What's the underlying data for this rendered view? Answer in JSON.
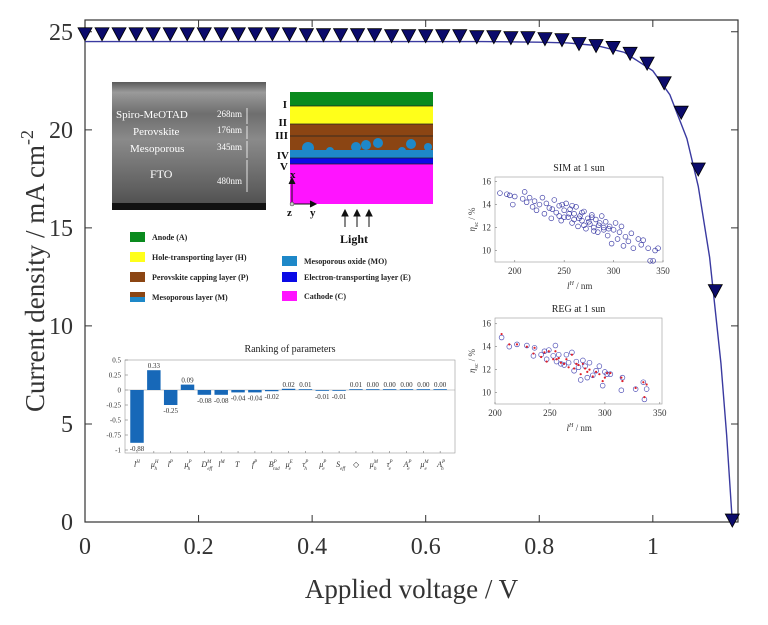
{
  "chart_data": [
    {
      "type": "line",
      "xlabel": "Applied voltage / V",
      "ylabel": "Current density / mA cm",
      "ylabel_sup": "-2",
      "xlim": [
        0,
        1.15
      ],
      "ylim": [
        0,
        25.6
      ],
      "xticks": [
        0,
        0.2,
        0.4,
        0.6,
        0.8,
        1
      ],
      "xtick_labels": [
        "0",
        "0.2",
        "0.4",
        "0.6",
        "0.8",
        "1"
      ],
      "yticks": [
        0,
        5,
        10,
        15,
        20,
        25
      ],
      "ytick_labels": [
        "0",
        "5",
        "10",
        "15",
        "20",
        "25"
      ],
      "grid": false,
      "series": [
        {
          "style": "solid line",
          "color": "#3a3aa0",
          "x": [
            0,
            0.5,
            0.7,
            0.8,
            0.85,
            0.9,
            0.95,
            1.0,
            1.03,
            1.06,
            1.08,
            1.1,
            1.12,
            1.13,
            1.14
          ],
          "y": [
            24.5,
            24.5,
            24.5,
            24.47,
            24.43,
            24.3,
            23.95,
            23.01,
            21.79,
            19.55,
            17.12,
            13.5,
            8.08,
            4.43,
            0
          ]
        },
        {
          "style": "downward triangle markers",
          "color": "#0b0b6b",
          "x": [
            0,
            0.03,
            0.06,
            0.09,
            0.12,
            0.15,
            0.18,
            0.21,
            0.24,
            0.27,
            0.3,
            0.33,
            0.36,
            0.39,
            0.42,
            0.45,
            0.48,
            0.51,
            0.54,
            0.57,
            0.6,
            0.63,
            0.66,
            0.69,
            0.72,
            0.75,
            0.78,
            0.81,
            0.84,
            0.87,
            0.9,
            0.93,
            0.96,
            0.99,
            1.02,
            1.05,
            1.08,
            1.11,
            1.14
          ],
          "y": [
            24.9,
            24.9,
            24.9,
            24.9,
            24.9,
            24.9,
            24.9,
            24.9,
            24.9,
            24.9,
            24.9,
            24.9,
            24.9,
            24.85,
            24.85,
            24.85,
            24.85,
            24.85,
            24.8,
            24.8,
            24.8,
            24.8,
            24.8,
            24.75,
            24.75,
            24.7,
            24.7,
            24.65,
            24.6,
            24.4,
            24.3,
            24.2,
            23.9,
            23.4,
            22.4,
            20.9,
            18.0,
            11.8,
            0.1
          ]
        }
      ]
    },
    {
      "type": "bar",
      "title": "Ranking of parameters",
      "ylim": [
        -1.05,
        0.5
      ],
      "yticks": [
        0.5,
        0.25,
        0,
        -0.25,
        -0.5,
        -0.75,
        -1
      ],
      "ytick_labels": [
        "0.5",
        "0.25",
        "0",
        "-0.25",
        "-0.5",
        "-0.75",
        "-1"
      ],
      "color": "#1768b8",
      "categories": [
        {
          "base": "l",
          "sup": "H",
          "sub": ""
        },
        {
          "base": "μ",
          "sup": "H",
          "sub": "h"
        },
        {
          "base": "l",
          "sup": "P",
          "sub": ""
        },
        {
          "base": "μ",
          "sup": "P",
          "sub": "h"
        },
        {
          "base": "D",
          "sup": "M",
          "sub": "eff"
        },
        {
          "base": "l",
          "sup": "M",
          "sub": ""
        },
        {
          "base": "T",
          "sup": "",
          "sub": ""
        },
        {
          "base": "f",
          "sup": "P",
          "sub": ""
        },
        {
          "base": "B",
          "sup": "P",
          "sub": "rad"
        },
        {
          "base": "μ",
          "sup": "E",
          "sub": "e"
        },
        {
          "base": "τ",
          "sup": "P",
          "sub": "h"
        },
        {
          "base": "μ",
          "sup": "P",
          "sub": "e"
        },
        {
          "base": "S",
          "sup": "",
          "sub": "eff"
        },
        {
          "base": "◇",
          "sup": "",
          "sub": ""
        },
        {
          "base": "μ",
          "sup": "M",
          "sub": "h"
        },
        {
          "base": "τ",
          "sup": "P",
          "sub": "e"
        },
        {
          "base": "A",
          "sup": "P",
          "sub": "e"
        },
        {
          "base": "μ",
          "sup": "M",
          "sub": "e"
        },
        {
          "base": "A",
          "sup": "P",
          "sub": "h"
        }
      ],
      "values": [
        -0.88,
        0.33,
        -0.25,
        0.09,
        -0.08,
        -0.08,
        -0.04,
        -0.04,
        -0.02,
        0.02,
        0.01,
        -0.01,
        -0.01,
        0.01,
        0.0,
        0.0,
        0.0,
        0.0,
        0.0
      ],
      "value_labels": [
        "-0.88",
        "0.33",
        "-0.25",
        "0.09",
        "-0.08",
        "-0.08",
        "-0.04",
        "-0.04",
        "-0.02",
        "0.02",
        "0.01",
        "-0.01",
        "-0.01",
        "0.01",
        "0.00",
        "0.00",
        "0.00",
        "0.00",
        "0.00"
      ]
    },
    {
      "type": "scatter",
      "title": "SIM at 1 sun",
      "xlabel": "l",
      "xlabel_sup": "H",
      "xlabel_unit": " / nm",
      "ylabel": "η",
      "ylabel_sub": "sc",
      "ylabel_unit": " / %",
      "xlim": [
        180,
        350
      ],
      "ylim": [
        9.0,
        16.4
      ],
      "xticks": [
        200,
        250,
        300,
        350
      ],
      "xtick_labels": [
        "200",
        "250",
        "300",
        "350"
      ],
      "yticks": [
        10,
        12,
        14,
        16
      ],
      "ytick_labels": [
        "10",
        "12",
        "14",
        "16"
      ],
      "color": "#22229a",
      "points": [
        [
          185,
          15.0
        ],
        [
          192,
          14.9
        ],
        [
          195,
          14.8
        ],
        [
          198,
          14.0
        ],
        [
          200,
          14.7
        ],
        [
          208,
          14.5
        ],
        [
          210,
          15.1
        ],
        [
          212,
          14.2
        ],
        [
          215,
          14.6
        ],
        [
          218,
          13.8
        ],
        [
          220,
          14.3
        ],
        [
          222,
          13.5
        ],
        [
          225,
          14.0
        ],
        [
          228,
          14.6
        ],
        [
          230,
          13.2
        ],
        [
          232,
          14.1
        ],
        [
          235,
          13.7
        ],
        [
          237,
          12.8
        ],
        [
          240,
          14.4
        ],
        [
          242,
          13.3
        ],
        [
          245,
          13.9
        ],
        [
          247,
          12.6
        ],
        [
          250,
          13.5
        ],
        [
          252,
          14.1
        ],
        [
          254,
          12.9
        ],
        [
          256,
          13.6
        ],
        [
          258,
          12.4
        ],
        [
          260,
          13.2
        ],
        [
          262,
          13.8
        ],
        [
          264,
          12.1
        ],
        [
          266,
          13.0
        ],
        [
          268,
          12.6
        ],
        [
          270,
          13.4
        ],
        [
          272,
          11.9
        ],
        [
          274,
          12.8
        ],
        [
          276,
          12.3
        ],
        [
          278,
          13.1
        ],
        [
          280,
          12.0
        ],
        [
          282,
          12.7
        ],
        [
          284,
          11.6
        ],
        [
          286,
          12.4
        ],
        [
          288,
          13.0
        ],
        [
          290,
          11.8
        ],
        [
          292,
          12.5
        ],
        [
          294,
          11.3
        ],
        [
          296,
          12.1
        ],
        [
          298,
          10.6
        ],
        [
          300,
          11.8
        ],
        [
          302,
          12.4
        ],
        [
          304,
          11.0
        ],
        [
          306,
          11.6
        ],
        [
          308,
          12.1
        ],
        [
          310,
          10.4
        ],
        [
          312,
          11.2
        ],
        [
          315,
          10.8
        ],
        [
          318,
          11.5
        ],
        [
          320,
          10.2
        ],
        [
          325,
          11.0
        ],
        [
          328,
          10.5
        ],
        [
          330,
          10.9
        ],
        [
          335,
          10.2
        ],
        [
          337,
          9.1
        ],
        [
          340,
          9.1
        ],
        [
          342,
          10.0
        ],
        [
          345,
          10.2
        ],
        [
          245,
          13.0
        ],
        [
          255,
          13.2
        ],
        [
          265,
          12.8
        ],
        [
          275,
          12.5
        ],
        [
          285,
          12.2
        ],
        [
          295,
          11.9
        ],
        [
          250,
          12.9
        ],
        [
          260,
          12.7
        ],
        [
          270,
          12.2
        ],
        [
          280,
          11.7
        ],
        [
          290,
          12.0
        ],
        [
          238,
          13.6
        ],
        [
          248,
          14.0
        ],
        [
          258,
          13.9
        ],
        [
          268,
          13.3
        ],
        [
          278,
          12.9
        ]
      ]
    },
    {
      "type": "scatter",
      "title": "REG at 1 sun",
      "xlabel": "l",
      "xlabel_sup": "H",
      "xlabel_unit": " / nm",
      "ylabel": "η",
      "ylabel_sub": "sc",
      "ylabel_unit": " / %",
      "xlim": [
        200,
        352
      ],
      "ylim": [
        9.0,
        16.5
      ],
      "xticks": [
        200,
        250,
        300,
        350
      ],
      "xtick_labels": [
        "200",
        "250",
        "300",
        "350"
      ],
      "yticks": [
        10,
        12,
        14,
        16
      ],
      "ytick_labels": [
        "10",
        "12",
        "14",
        "16"
      ],
      "sim_color": "#3333aa",
      "reg_color": "#e0202a",
      "points": [
        [
          206,
          14.8,
          15.1
        ],
        [
          213,
          14.0,
          14.2
        ],
        [
          220,
          14.2,
          14.2
        ],
        [
          229,
          14.1,
          14.0
        ],
        [
          235,
          13.2,
          13.4
        ],
        [
          236,
          13.9,
          13.9
        ],
        [
          242,
          13.3,
          13.1
        ],
        [
          245,
          13.6,
          13.5
        ],
        [
          247,
          12.9,
          12.7
        ],
        [
          249,
          13.7,
          13.6
        ],
        [
          253,
          13.2,
          12.9
        ],
        [
          255,
          14.1,
          13.6
        ],
        [
          256,
          12.7,
          12.9
        ],
        [
          258,
          13.3,
          13.0
        ],
        [
          260,
          12.5,
          12.6
        ],
        [
          263,
          12.4,
          12.5
        ],
        [
          265,
          13.3,
          12.9
        ],
        [
          267,
          12.6,
          12.2
        ],
        [
          270,
          13.5,
          13.3
        ],
        [
          272,
          11.9,
          12.1
        ],
        [
          274,
          12.7,
          12.5
        ],
        [
          276,
          12.2,
          12.4
        ],
        [
          278,
          11.1,
          11.6
        ],
        [
          280,
          12.8,
          12.5
        ],
        [
          282,
          12.3,
          12.1
        ],
        [
          284,
          11.3,
          11.8
        ],
        [
          286,
          12.6,
          12.0
        ],
        [
          289,
          11.5,
          11.4
        ],
        [
          292,
          11.9,
          11.8
        ],
        [
          295,
          12.3,
          11.6
        ],
        [
          298,
          10.6,
          11.0
        ],
        [
          300,
          11.8,
          11.3
        ],
        [
          302,
          11.6,
          11.7
        ],
        [
          305,
          11.6,
          11.7
        ],
        [
          315,
          10.2,
          11.3
        ],
        [
          316,
          11.3,
          11.0
        ],
        [
          328,
          10.3,
          10.4
        ],
        [
          335,
          10.9,
          10.9
        ],
        [
          336,
          9.4,
          9.6
        ],
        [
          338,
          10.3,
          10.7
        ]
      ]
    }
  ],
  "sem_image": {
    "labels": [
      "Spiro-MeOTAD",
      "Perovskite",
      "Mesoporous",
      "FTO"
    ],
    "thicknesses": [
      "268nm",
      "176nm",
      "345nm",
      "480nm"
    ]
  },
  "schematic": {
    "layer_numerals": [
      "I",
      "II",
      "III",
      "IV",
      "V"
    ],
    "axis_x": "x",
    "axis_y": "y",
    "axis_z": "z",
    "light_label": "Light",
    "colors": {
      "anode": "#0a8a1e",
      "htl": "#ffff1a",
      "perovskite": "#8b4513",
      "mo": "#1e88c8",
      "etl": "#0a0ae6",
      "cathode": "#ff14ff"
    }
  },
  "legend": [
    {
      "label": "Anode (A)",
      "color": "#0a8a1e"
    },
    {
      "label": "Hole-transporting layer (H)",
      "color": "#ffff1a"
    },
    {
      "label": "Perovskite capping layer (P)",
      "color": "#8b4513"
    },
    {
      "label": "Mesoporous layer (M)",
      "color": "#8b4513",
      "color2": "#1e88c8"
    },
    {
      "label": "Mesoporous oxide (MO)",
      "color": "#1e88c8"
    },
    {
      "label": "Electron-transporting layer (E)",
      "color": "#0a0ae6"
    },
    {
      "label": "Cathode (C)",
      "color": "#ff14ff"
    }
  ]
}
